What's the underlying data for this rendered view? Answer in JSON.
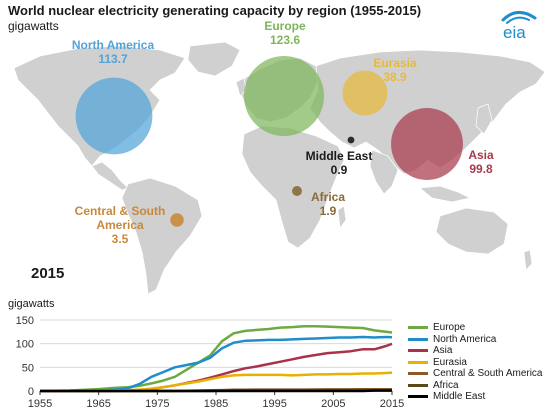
{
  "header": {
    "title": "World nuclear electricity generating capacity by region (1955-2015)",
    "units": "gigawatts",
    "logo_text": "eia"
  },
  "map": {
    "year_label": "2015",
    "regions": [
      {
        "key": "north_america",
        "name": "North America",
        "name_lines": [
          "North America"
        ],
        "value": "113.7",
        "color": "#52a4d8"
      },
      {
        "key": "europe",
        "name": "Europe",
        "name_lines": [
          "Europe"
        ],
        "value": "123.6",
        "color": "#7eb55a"
      },
      {
        "key": "eurasia",
        "name": "Eurasia",
        "name_lines": [
          "Eurasia"
        ],
        "value": "38.9",
        "color": "#e8b93a"
      },
      {
        "key": "asia",
        "name": "Asia",
        "name_lines": [
          "Asia"
        ],
        "value": "99.8",
        "color": "#a83a4b"
      },
      {
        "key": "middle_east",
        "name": "Middle East",
        "name_lines": [
          "Middle East"
        ],
        "value": "0.9",
        "color": "#1a1a1a"
      },
      {
        "key": "africa",
        "name": "Africa",
        "name_lines": [
          "Africa"
        ],
        "value": "1.9",
        "color": "#8a6a3a"
      },
      {
        "key": "central_south_america",
        "name": "Central & South America",
        "name_lines": [
          "Central & South",
          "America"
        ],
        "value": "3.5",
        "color": "#c8893a"
      }
    ]
  },
  "chart_data": {
    "type": "line",
    "ylabel": "gigawatts",
    "xlabel": "",
    "xlim": [
      1955,
      2015
    ],
    "ylim": [
      0,
      150
    ],
    "x_ticks": [
      1955,
      1965,
      1975,
      1985,
      1995,
      2005,
      2015
    ],
    "y_ticks": [
      0,
      50,
      100,
      150
    ],
    "grid": "horizontal",
    "legend_position": "right",
    "x": [
      1955,
      1960,
      1965,
      1968,
      1970,
      1972,
      1974,
      1976,
      1978,
      1980,
      1982,
      1984,
      1986,
      1988,
      1990,
      1992,
      1994,
      1996,
      1998,
      2000,
      2002,
      2004,
      2006,
      2008,
      2010,
      2012,
      2014,
      2015
    ],
    "series": [
      {
        "name": "Europe",
        "color": "#6bab3f",
        "values": [
          0,
          1,
          4,
          7,
          8,
          11,
          16,
          22,
          30,
          45,
          60,
          75,
          105,
          122,
          127,
          129,
          131,
          134,
          135,
          137,
          137,
          136,
          135,
          134,
          133,
          128,
          125,
          123.6
        ]
      },
      {
        "name": "North America",
        "color": "#1f8dcc",
        "values": [
          0,
          0.5,
          1,
          3,
          6,
          15,
          30,
          40,
          50,
          55,
          60,
          70,
          90,
          102,
          106,
          107,
          108,
          108,
          109,
          110,
          111,
          112,
          113,
          113,
          114,
          113,
          114,
          113.7
        ]
      },
      {
        "name": "Asia",
        "color": "#a8324a",
        "values": [
          0,
          0,
          0,
          0,
          1,
          2,
          4,
          8,
          12,
          17,
          22,
          28,
          35,
          42,
          48,
          52,
          57,
          62,
          67,
          72,
          76,
          80,
          82,
          84,
          88,
          88,
          95,
          99.8
        ]
      },
      {
        "name": "Eurasia",
        "color": "#e8b000",
        "values": [
          0,
          0.5,
          1,
          1.5,
          2,
          3,
          5,
          8,
          12,
          16,
          20,
          25,
          30,
          33,
          34,
          34,
          34,
          34,
          33,
          34,
          35,
          35,
          36,
          36,
          37,
          37,
          38,
          38.9
        ]
      },
      {
        "name": "Central & South America",
        "color": "#8a5a2b",
        "values": [
          0,
          0,
          0,
          0,
          0,
          0,
          0,
          0,
          0,
          0.5,
          1,
          1.5,
          2,
          2.5,
          2.8,
          3,
          3,
          3,
          3,
          3,
          3.2,
          3.3,
          3.4,
          3.4,
          3.5,
          3.5,
          3.5,
          3.5
        ]
      },
      {
        "name": "Africa",
        "color": "#5a4a1a",
        "values": [
          0,
          0,
          0,
          0,
          0,
          0,
          0,
          0,
          0,
          0,
          0,
          0,
          0.9,
          1.8,
          1.8,
          1.8,
          1.8,
          1.8,
          1.8,
          1.8,
          1.8,
          1.8,
          1.8,
          1.8,
          1.9,
          1.9,
          1.9,
          1.9
        ]
      },
      {
        "name": "Middle East",
        "color": "#000000",
        "values": [
          0,
          0,
          0,
          0,
          0,
          0,
          0,
          0,
          0,
          0,
          0,
          0,
          0,
          0,
          0,
          0,
          0,
          0,
          0,
          0,
          0,
          0,
          0,
          0,
          0,
          0.9,
          0.9,
          0.9
        ]
      }
    ]
  }
}
